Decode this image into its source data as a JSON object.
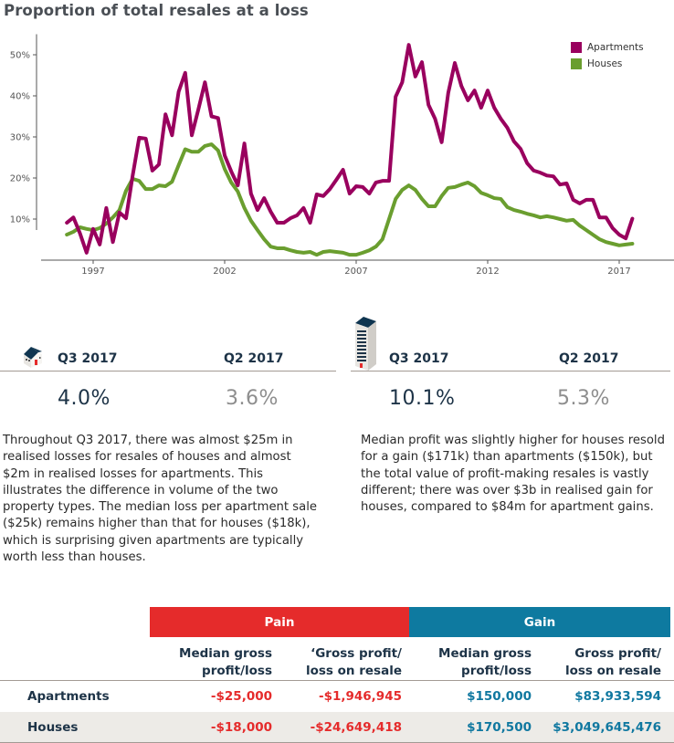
{
  "title": "Proportion of total resales at a loss",
  "colors": {
    "apartments": "#99005e",
    "houses": "#6a9e2f",
    "pain": "#e52b2b",
    "gain": "#0e7aa0",
    "dark_text": "#1d3347",
    "muted_text": "#8e8e8e"
  },
  "chart_data": {
    "type": "line",
    "title": "Proportion of total resales at a loss",
    "xlabel": "",
    "ylabel": "",
    "x_start": "Q1 1996",
    "x_end": "Q3 2017",
    "x_tick_labels": [
      "1997",
      "2002",
      "2007",
      "2012",
      "2017"
    ],
    "x_ticks": [
      1997,
      2002,
      2007,
      2012,
      2017
    ],
    "y_tick_labels": [
      "10%",
      "20%",
      "30%",
      "40%",
      "50%"
    ],
    "y_ticks": [
      10,
      20,
      30,
      40,
      50
    ],
    "xlim": [
      1995.75,
      2018.25
    ],
    "ylim": [
      0,
      55
    ],
    "grid": false,
    "legend": "top-right",
    "series": [
      {
        "name": "Apartments",
        "values": [
          9.1,
          10.4,
          6.5,
          1.8,
          7.6,
          3.8,
          12.7,
          4.4,
          11.6,
          10.2,
          20.5,
          29.8,
          29.6,
          21.8,
          23.3,
          35.5,
          30.4,
          41.0,
          45.6,
          30.4,
          36.7,
          43.3,
          35.0,
          34.6,
          25.5,
          21.6,
          18.2,
          28.4,
          16.2,
          12.2,
          15.1,
          11.8,
          9.1,
          9.1,
          10.2,
          10.9,
          12.7,
          9.1,
          16.0,
          15.6,
          17.3,
          19.6,
          22.0,
          16.2,
          18.0,
          17.8,
          16.2,
          18.9,
          19.3,
          19.3,
          39.8,
          43.3,
          52.4,
          44.7,
          48.2,
          37.8,
          34.4,
          28.7,
          40.7,
          48.0,
          42.4,
          38.9,
          41.3,
          37.1,
          41.3,
          37.1,
          34.4,
          32.2,
          28.9,
          27.1,
          23.6,
          21.8,
          21.3,
          20.6,
          20.4,
          18.4,
          18.7,
          14.7,
          13.8,
          14.7,
          14.7,
          10.4,
          10.4,
          7.8,
          6.2,
          5.3,
          10.1
        ]
      },
      {
        "name": "Houses",
        "values": [
          6.2,
          6.9,
          8.0,
          7.6,
          7.3,
          7.8,
          8.9,
          10.4,
          12.2,
          16.9,
          19.8,
          19.3,
          17.3,
          17.3,
          18.2,
          18.0,
          19.1,
          23.1,
          27.0,
          26.4,
          26.4,
          27.8,
          28.2,
          26.7,
          22.2,
          18.9,
          16.7,
          12.7,
          9.6,
          7.3,
          5.1,
          3.3,
          2.9,
          2.9,
          2.4,
          2.0,
          1.8,
          2.0,
          1.3,
          2.0,
          2.2,
          2.0,
          1.8,
          1.3,
          1.3,
          1.8,
          2.4,
          3.3,
          5.1,
          10.0,
          14.9,
          17.1,
          18.2,
          17.1,
          14.9,
          13.1,
          13.1,
          15.6,
          17.6,
          17.8,
          18.4,
          18.9,
          18.0,
          16.4,
          15.8,
          15.1,
          14.9,
          12.9,
          12.2,
          11.8,
          11.3,
          10.9,
          10.4,
          10.7,
          10.4,
          10.0,
          9.6,
          9.8,
          8.4,
          7.3,
          6.2,
          5.1,
          4.4,
          4.0,
          3.6,
          3.8,
          4.0
        ]
      }
    ]
  },
  "legend": {
    "items": [
      {
        "label": "Apartments",
        "color": "#99005e"
      },
      {
        "label": "Houses",
        "color": "#6a9e2f"
      }
    ]
  },
  "stats": {
    "houses": {
      "icon": "house-icon",
      "current_label": "Q3 2017",
      "current_value": "4.0%",
      "previous_label": "Q2 2017",
      "previous_value": "3.6%"
    },
    "apartments": {
      "icon": "apartment-building-icon",
      "current_label": "Q3 2017",
      "current_value": "10.1%",
      "previous_label": "Q2 2017",
      "previous_value": "5.3%"
    }
  },
  "paragraphs": {
    "left": "Throughout Q3 2017, there was almost $25m in realised losses for resales of houses and almost $2m in realised losses for apartments. This illustrates the difference in volume of the two property types. The median loss per apartment sale ($25k) remains higher than that for houses ($18k), which is surprising given apartments are typically worth less than houses.",
    "right": "Median profit was slightly higher for houses resold for a gain ($171k) than apartments ($150k), but the total value of profit-making resales is vastly different; there was over $3b in realised gain for houses, compared to $84m for apartment gains."
  },
  "table": {
    "groups": [
      {
        "label": "Pain"
      },
      {
        "label": "Gain"
      }
    ],
    "columns": [
      {
        "line1": "Median gross",
        "line2": "profit/loss"
      },
      {
        "line1": "‘Gross profit/",
        "line2": "loss on resale"
      },
      {
        "line1": "Median gross",
        "line2": "profit/loss"
      },
      {
        "line1": "Gross profit/",
        "line2": "loss on resale"
      }
    ],
    "rows": [
      {
        "label": "Apartments",
        "cells": [
          "-$25,000",
          "-$1,946,945",
          "$150,000",
          "$83,933,594"
        ]
      },
      {
        "label": "Houses",
        "cells": [
          "-$18,000",
          "-$24,649,418",
          "$170,500",
          "$3,049,645,476"
        ]
      }
    ]
  }
}
